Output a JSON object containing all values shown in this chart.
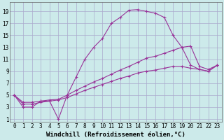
{
  "xlabel": "Windchill (Refroidissement éolien,°C)",
  "bg_color": "#cceaea",
  "grid_color": "#aaaacc",
  "line_color": "#993399",
  "xlim": [
    -0.5,
    23.5
  ],
  "ylim": [
    0.5,
    20.5
  ],
  "xticks": [
    0,
    1,
    2,
    3,
    4,
    5,
    6,
    7,
    8,
    9,
    10,
    11,
    12,
    13,
    14,
    15,
    16,
    17,
    18,
    19,
    20,
    21,
    22,
    23
  ],
  "yticks": [
    1,
    3,
    5,
    7,
    9,
    11,
    13,
    15,
    17,
    19
  ],
  "line1_x": [
    0,
    1,
    2,
    3,
    4,
    5,
    6,
    7,
    8,
    9,
    10,
    11,
    12,
    13,
    14,
    15,
    16,
    17,
    18,
    19,
    20,
    21,
    22,
    23
  ],
  "line1_y": [
    5,
    3,
    3,
    4,
    4,
    1,
    5,
    8,
    11,
    13,
    14.5,
    17,
    18,
    19.2,
    19.3,
    19,
    18.7,
    18,
    15,
    13,
    10,
    9.3,
    9,
    10
  ],
  "line2_x": [
    0,
    1,
    2,
    3,
    4,
    5,
    6,
    7,
    8,
    9,
    10,
    11,
    12,
    13,
    14,
    15,
    16,
    17,
    18,
    19,
    20,
    21,
    22,
    23
  ],
  "line2_y": [
    5,
    3.8,
    3.8,
    4.0,
    4.2,
    4.3,
    5.0,
    5.8,
    6.5,
    7.2,
    7.8,
    8.5,
    9.2,
    9.8,
    10.5,
    11.2,
    11.5,
    12.0,
    12.5,
    13.0,
    13.2,
    9.8,
    9.3,
    10
  ],
  "line3_x": [
    0,
    1,
    2,
    3,
    4,
    5,
    6,
    7,
    8,
    9,
    10,
    11,
    12,
    13,
    14,
    15,
    16,
    17,
    18,
    19,
    20,
    21,
    22,
    23
  ],
  "line3_y": [
    5,
    3.5,
    3.5,
    3.8,
    4.0,
    4.2,
    4.6,
    5.2,
    5.8,
    6.3,
    6.8,
    7.3,
    7.8,
    8.2,
    8.7,
    9.0,
    9.2,
    9.5,
    9.8,
    9.8,
    9.5,
    9.3,
    9.0,
    10
  ],
  "font_family": "monospace",
  "tick_fontsize": 5.5,
  "xlabel_fontsize": 6.5
}
